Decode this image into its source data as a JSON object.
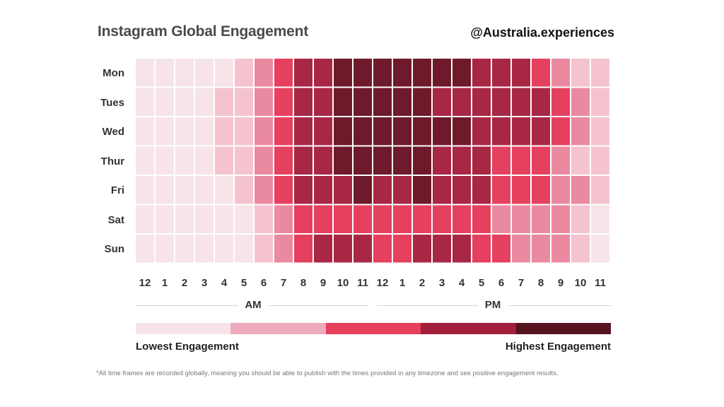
{
  "header": {
    "title": "Instagram Global Engagement",
    "handle": "@Australia.experiences"
  },
  "chart_data": {
    "type": "heatmap",
    "title": "Instagram Global Engagement",
    "rows": [
      "Mon",
      "Tues",
      "Wed",
      "Thur",
      "Fri",
      "Sat",
      "Sun"
    ],
    "columns": [
      "12",
      "1",
      "2",
      "3",
      "4",
      "5",
      "6",
      "7",
      "8",
      "9",
      "10",
      "11",
      "12",
      "1",
      "2",
      "3",
      "4",
      "5",
      "6",
      "7",
      "8",
      "9",
      "10",
      "11"
    ],
    "column_groups": [
      {
        "label": "AM",
        "span": 12
      },
      {
        "label": "PM",
        "span": 12
      }
    ],
    "values": [
      [
        0,
        0,
        0,
        0,
        0,
        1,
        2,
        3,
        4,
        4,
        5,
        5,
        5,
        5,
        5,
        5,
        5,
        4,
        4,
        4,
        3,
        2,
        1,
        1
      ],
      [
        0,
        0,
        0,
        0,
        1,
        1,
        2,
        3,
        4,
        4,
        5,
        5,
        5,
        5,
        5,
        4,
        4,
        4,
        4,
        4,
        4,
        3,
        2,
        1
      ],
      [
        0,
        0,
        0,
        0,
        1,
        1,
        2,
        3,
        4,
        4,
        5,
        5,
        5,
        5,
        5,
        5,
        5,
        4,
        4,
        4,
        4,
        3,
        2,
        1
      ],
      [
        0,
        0,
        0,
        0,
        1,
        1,
        2,
        3,
        4,
        4,
        5,
        5,
        5,
        5,
        5,
        4,
        4,
        4,
        3,
        3,
        3,
        2,
        1,
        1
      ],
      [
        0,
        0,
        0,
        0,
        0,
        1,
        2,
        3,
        4,
        4,
        4,
        5,
        4,
        4,
        5,
        4,
        4,
        4,
        3,
        3,
        3,
        2,
        2,
        1
      ],
      [
        0,
        0,
        0,
        0,
        0,
        0,
        1,
        2,
        3,
        3,
        3,
        3,
        3,
        3,
        3,
        3,
        3,
        3,
        2,
        2,
        2,
        2,
        1,
        0
      ],
      [
        0,
        0,
        0,
        0,
        0,
        0,
        1,
        2,
        3,
        4,
        4,
        4,
        3,
        3,
        4,
        4,
        4,
        3,
        3,
        2,
        2,
        2,
        1,
        0
      ]
    ],
    "color_scale": [
      "#f6e4e9",
      "#f4c3cf",
      "#ea8aa0",
      "#e5405e",
      "#a82744",
      "#6e1a2a"
    ],
    "legend": {
      "colors": [
        "#f6e4e9",
        "#eeabbd",
        "#e5405e",
        "#a11f3b",
        "#551420"
      ],
      "low_label": "Lowest Engagement",
      "high_label": "Highest Engagement"
    }
  },
  "footnote": "*All time frames are recorded globally, meaning you should be able to publish with the times provided in any timezone and see positive engagement results."
}
